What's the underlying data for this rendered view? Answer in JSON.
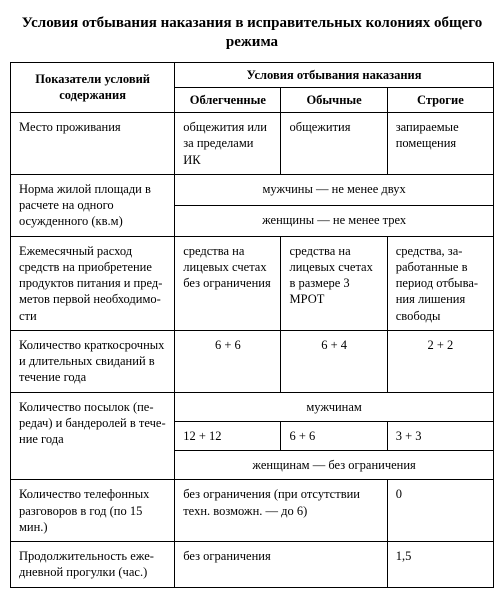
{
  "title": "Условия отбывания наказания в исправительных колониях общего режима",
  "headers": {
    "indicator": "Показатели условий содержания",
    "conditions": "Условия отбывания наказания",
    "col1": "Облегченные",
    "col2": "Обычные",
    "col3": "Строгие"
  },
  "rows": {
    "residence": {
      "label": "Место проживания",
      "c1": "общежития или за предела­ми ИК",
      "c2": "общежития",
      "c3": "запираемые помещения"
    },
    "living_area": {
      "label": "Норма жилой площади в расчете на одного осужден­ного (кв.м)",
      "line_men": "мужчины — не менее двух",
      "line_women": "женщины — не менее трех"
    },
    "monthly_spend": {
      "label": "Ежемесячный расход средств на приобретение продуктов питания и пред­метов первой необходимо­сти",
      "c1": "средства на лицевых счетах без ограниче­ния",
      "c2": "средства на лицевых счетах в размере 3 МРОТ",
      "c3": "средства, за­работанные в период отбыва­ния лишения свободы"
    },
    "visits": {
      "label": "Количество краткосроч­ных и длительных свида­ний в течение года",
      "c1": "6 + 6",
      "c2": "6 + 4",
      "c3": "2 + 2"
    },
    "parcels": {
      "label": "Количество посылок (пе­редач) и бандеролей в тече­ние года",
      "line_men": "мужчинам",
      "c1": "12 + 12",
      "c2": "6 + 6",
      "c3": "3 + 3",
      "line_women": "женщинам — без ограничения"
    },
    "calls": {
      "label": "Количество телефонных разговоров в год (по 15 мин.)",
      "c12": "без ограничения (при отсутст­вии техн. возможн. — до 6)",
      "c3": "0"
    },
    "walk": {
      "label": "Продолжительность еже­дневной прогулки (час.)",
      "c12": "без ограничения",
      "c3": "1,5"
    }
  }
}
